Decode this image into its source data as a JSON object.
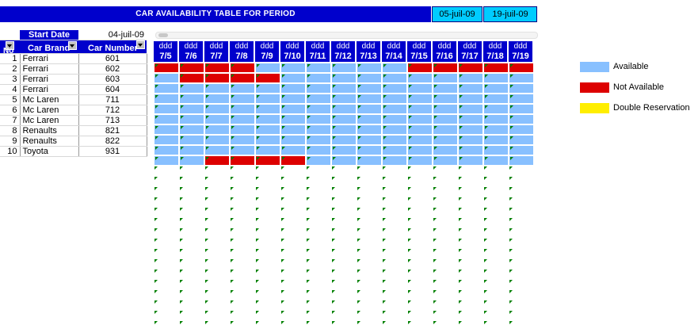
{
  "title": "CAR AVAILABILITY TABLE FOR PERIOD",
  "period_start": "05-juil-09",
  "period_end": "19-juil-09",
  "start_date_label": "Start Date",
  "start_date_value": "04-juil-09",
  "headers": {
    "no": "No",
    "brand": "Car Brand",
    "number": "Car Number"
  },
  "day_labels": [
    "ddd",
    "ddd",
    "ddd",
    "ddd",
    "ddd",
    "ddd",
    "ddd",
    "ddd",
    "ddd",
    "ddd",
    "ddd",
    "ddd",
    "ddd",
    "ddd",
    "ddd"
  ],
  "dates": [
    "7/5",
    "7/6",
    "7/7",
    "7/8",
    "7/9",
    "7/10",
    "7/11",
    "7/12",
    "7/13",
    "7/14",
    "7/15",
    "7/16",
    "7/17",
    "7/18",
    "7/19"
  ],
  "cars": [
    {
      "no": "1",
      "brand": "Ferrari",
      "number": "601",
      "status": "RRRRAAAAAARRRRR"
    },
    {
      "no": "2",
      "brand": "Ferrari",
      "number": "602",
      "status": "ARRRRAAAAAAAAAA"
    },
    {
      "no": "3",
      "brand": "Ferrari",
      "number": "603",
      "status": "AAAAAAAAAAAAAAA"
    },
    {
      "no": "4",
      "brand": "Ferrari",
      "number": "604",
      "status": "AAAAAAAAAAAAAAA"
    },
    {
      "no": "5",
      "brand": "Mc Laren",
      "number": "711",
      "status": "AAAAAAAAAAAAAAA"
    },
    {
      "no": "6",
      "brand": "Mc Laren",
      "number": "712",
      "status": "AAAAAAAAAAAAAAA"
    },
    {
      "no": "7",
      "brand": "Mc Laren",
      "number": "713",
      "status": "AAAAAAAAAAAAAAA"
    },
    {
      "no": "8",
      "brand": "Renaults",
      "number": "821",
      "status": "AAAAAAAAAAAAAAA"
    },
    {
      "no": "9",
      "brand": "Renaults",
      "number": "822",
      "status": "AAAAAAAAAAAAAAA"
    },
    {
      "no": "10",
      "brand": "Toyota",
      "number": "931",
      "status": "AARRRRAAAAAAAAA"
    }
  ],
  "legend": [
    {
      "label": "Available",
      "color": "#88c0ff"
    },
    {
      "label": "Not Available",
      "color": "#dd0000"
    },
    {
      "label": "Double Reservation",
      "color": "#ffee00"
    }
  ],
  "colors": {
    "header_blue": "#0000cc",
    "date_box": "#00ccff",
    "marker": "#008000"
  }
}
